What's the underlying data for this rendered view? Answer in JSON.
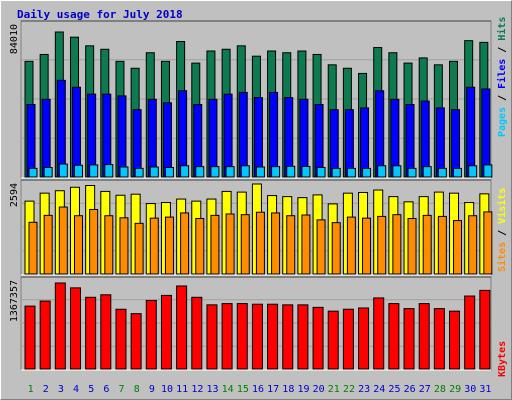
{
  "title": "Daily usage for July 2018",
  "colors": {
    "hits": "#0e7a50",
    "files": "#0000ff",
    "pages": "#00c8ff",
    "visits": "#ffff00",
    "sites": "#ff8c00",
    "kbytes": "#ff0000",
    "weekend_label": "#008000",
    "weekday_label": "#0000cc"
  },
  "chart_data": [
    {
      "type": "bar",
      "panel": "top",
      "scale_label": "84010",
      "ylim": [
        0,
        84010
      ],
      "legend": [
        "Pages",
        "Files",
        "Hits"
      ],
      "series": [
        {
          "name": "Hits",
          "values": [
            67000,
            71000,
            84010,
            81000,
            76000,
            74000,
            67000,
            63000,
            72000,
            67000,
            78500,
            66000,
            73000,
            74000,
            76000,
            70000,
            73000,
            72000,
            73000,
            71000,
            65000,
            63000,
            60000,
            75000,
            72000,
            66000,
            69000,
            65000,
            67000,
            79000,
            78000
          ]
        },
        {
          "name": "Files",
          "values": [
            42000,
            45000,
            56000,
            52000,
            48000,
            48000,
            47000,
            39000,
            45000,
            43000,
            50000,
            42000,
            45000,
            48000,
            49000,
            46000,
            49000,
            46000,
            45000,
            42000,
            39000,
            39000,
            40000,
            50000,
            45000,
            42000,
            44000,
            40000,
            39000,
            52000,
            51000
          ]
        },
        {
          "name": "Pages",
          "values": [
            5000,
            5500,
            7500,
            6800,
            7000,
            7200,
            5800,
            5000,
            5800,
            5500,
            6500,
            6000,
            6000,
            6000,
            6500,
            5800,
            6000,
            6200,
            6100,
            5500,
            5000,
            5000,
            5000,
            6500,
            6500,
            5000,
            6000,
            5000,
            5000,
            6500,
            7000
          ]
        }
      ],
      "categories": [
        "1",
        "2",
        "3",
        "4",
        "5",
        "6",
        "7",
        "8",
        "9",
        "10",
        "11",
        "12",
        "13",
        "14",
        "15",
        "16",
        "17",
        "18",
        "19",
        "20",
        "21",
        "22",
        "23",
        "24",
        "25",
        "26",
        "27",
        "28",
        "29",
        "30",
        "31"
      ]
    },
    {
      "type": "bar",
      "panel": "middle",
      "scale_label": "2594",
      "ylim": [
        0,
        2594
      ],
      "legend": [
        "Sites",
        "Visits"
      ],
      "series": [
        {
          "name": "Visits",
          "values": [
            2100,
            2330,
            2400,
            2500,
            2550,
            2380,
            2270,
            2300,
            2030,
            2060,
            2160,
            2100,
            2160,
            2380,
            2360,
            2594,
            2260,
            2230,
            2200,
            2280,
            2020,
            2330,
            2350,
            2420,
            2230,
            2080,
            2230,
            2360,
            2330,
            2060,
            2310
          ]
        },
        {
          "name": "Sites",
          "values": [
            1490,
            1690,
            1930,
            1680,
            1860,
            1680,
            1620,
            1460,
            1610,
            1640,
            1760,
            1600,
            1690,
            1730,
            1710,
            1780,
            1760,
            1680,
            1700,
            1560,
            1480,
            1640,
            1610,
            1660,
            1710,
            1600,
            1690,
            1660,
            1540,
            1680,
            1790
          ]
        }
      ]
    },
    {
      "type": "bar",
      "panel": "bottom",
      "scale_label": "1367357",
      "ylim": [
        0,
        1367357
      ],
      "legend": [
        "KBytes"
      ],
      "series": [
        {
          "name": "KBytes",
          "values": [
            1000000,
            1080000,
            1367357,
            1290000,
            1140000,
            1180000,
            950000,
            880000,
            1090000,
            1170000,
            1320000,
            1140000,
            1020000,
            1040000,
            1040000,
            1030000,
            1030000,
            1020000,
            1020000,
            980000,
            920000,
            950000,
            970000,
            1130000,
            1040000,
            960000,
            1040000,
            960000,
            920000,
            1160000,
            1250000
          ]
        }
      ]
    }
  ],
  "weekend_days": [
    1,
    7,
    8,
    14,
    15,
    21,
    22,
    28,
    29
  ]
}
